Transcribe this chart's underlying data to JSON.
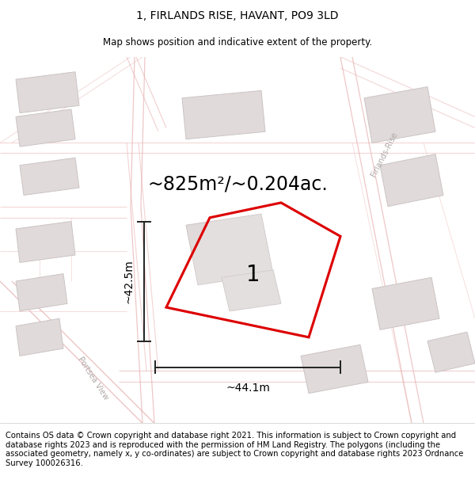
{
  "title_line1": "1, FIRLANDS RISE, HAVANT, PO9 3LD",
  "title_line2": "Map shows position and indicative extent of the property.",
  "area_text": "~825m²/~0.204ac.",
  "label_number": "1",
  "dim_width": "~44.1m",
  "dim_height": "~42.5m",
  "footer_text": "Contains OS data © Crown copyright and database right 2021. This information is subject to Crown copyright and database rights 2023 and is reproduced with the permission of HM Land Registry. The polygons (including the associated geometry, namely x, y co-ordinates) are subject to Crown copyright and database rights 2023 Ordnance Survey 100026316.",
  "map_bg": "#f9f4f4",
  "road_color": "#e8b0b0",
  "building_fill": "#e0dada",
  "building_edge": "#ccc4c4",
  "property_fill": "#ffffff",
  "property_edge": "#dd0000",
  "dim_color": "#222222",
  "road_label_color": "#b0a8a8",
  "title_fontsize": 10,
  "subtitle_fontsize": 8.5,
  "area_fontsize": 17,
  "number_fontsize": 20,
  "dim_fontsize": 10,
  "footer_fontsize": 7.2,
  "road_label_fontsize": 7
}
